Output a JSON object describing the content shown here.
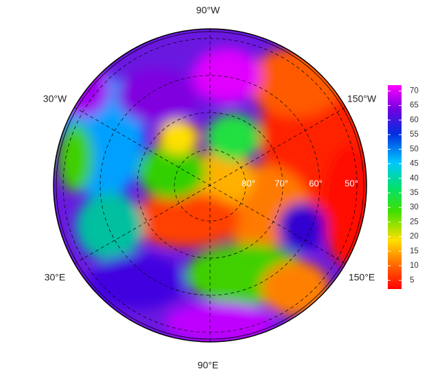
{
  "map": {
    "lon_labels": {
      "top": "90°W",
      "upper_left": "30°W",
      "upper_right": "150°W",
      "lower_left": "30°E",
      "lower_right": "150°E",
      "bottom": "90°E"
    },
    "lat_labels": [
      "80°",
      "70°",
      "60°",
      "50°"
    ],
    "colorbar": {
      "lim": [
        2,
        72
      ],
      "ticks": [
        5,
        10,
        15,
        20,
        25,
        30,
        35,
        40,
        45,
        50,
        55,
        60,
        65,
        70
      ]
    }
  }
}
